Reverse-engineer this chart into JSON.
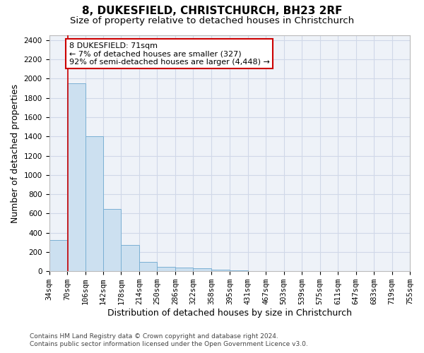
{
  "title": "8, DUKESFIELD, CHRISTCHURCH, BH23 2RF",
  "subtitle": "Size of property relative to detached houses in Christchurch",
  "xlabel": "Distribution of detached houses by size in Christchurch",
  "ylabel": "Number of detached properties",
  "footer_line1": "Contains HM Land Registry data © Crown copyright and database right 2024.",
  "footer_line2": "Contains public sector information licensed under the Open Government Licence v3.0.",
  "bar_edges": [
    34,
    70,
    106,
    142,
    178,
    214,
    250,
    286,
    322,
    358,
    395,
    431,
    467,
    503,
    539,
    575,
    611,
    647,
    683,
    719,
    755
  ],
  "bar_heights": [
    325,
    1950,
    1400,
    650,
    275,
    100,
    42,
    35,
    28,
    18,
    10,
    0,
    0,
    0,
    0,
    0,
    0,
    0,
    0,
    0
  ],
  "bar_color": "#cce0f0",
  "bar_edge_color": "#7ab0d4",
  "property_line_x": 71,
  "property_line_color": "#cc0000",
  "annotation_text": "8 DUKESFIELD: 71sqm\n← 7% of detached houses are smaller (327)\n92% of semi-detached houses are larger (4,448) →",
  "annotation_box_color": "#cc0000",
  "annotation_text_color": "#000000",
  "ylim": [
    0,
    2450
  ],
  "yticks": [
    0,
    200,
    400,
    600,
    800,
    1000,
    1200,
    1400,
    1600,
    1800,
    2000,
    2200,
    2400
  ],
  "title_fontsize": 11,
  "subtitle_fontsize": 9.5,
  "xlabel_fontsize": 9,
  "ylabel_fontsize": 9,
  "tick_fontsize": 7.5,
  "annotation_fontsize": 8,
  "footer_fontsize": 6.5,
  "background_color": "#ffffff",
  "grid_color": "#d0d8e8",
  "fig_width": 6.0,
  "fig_height": 5.0,
  "dpi": 100
}
